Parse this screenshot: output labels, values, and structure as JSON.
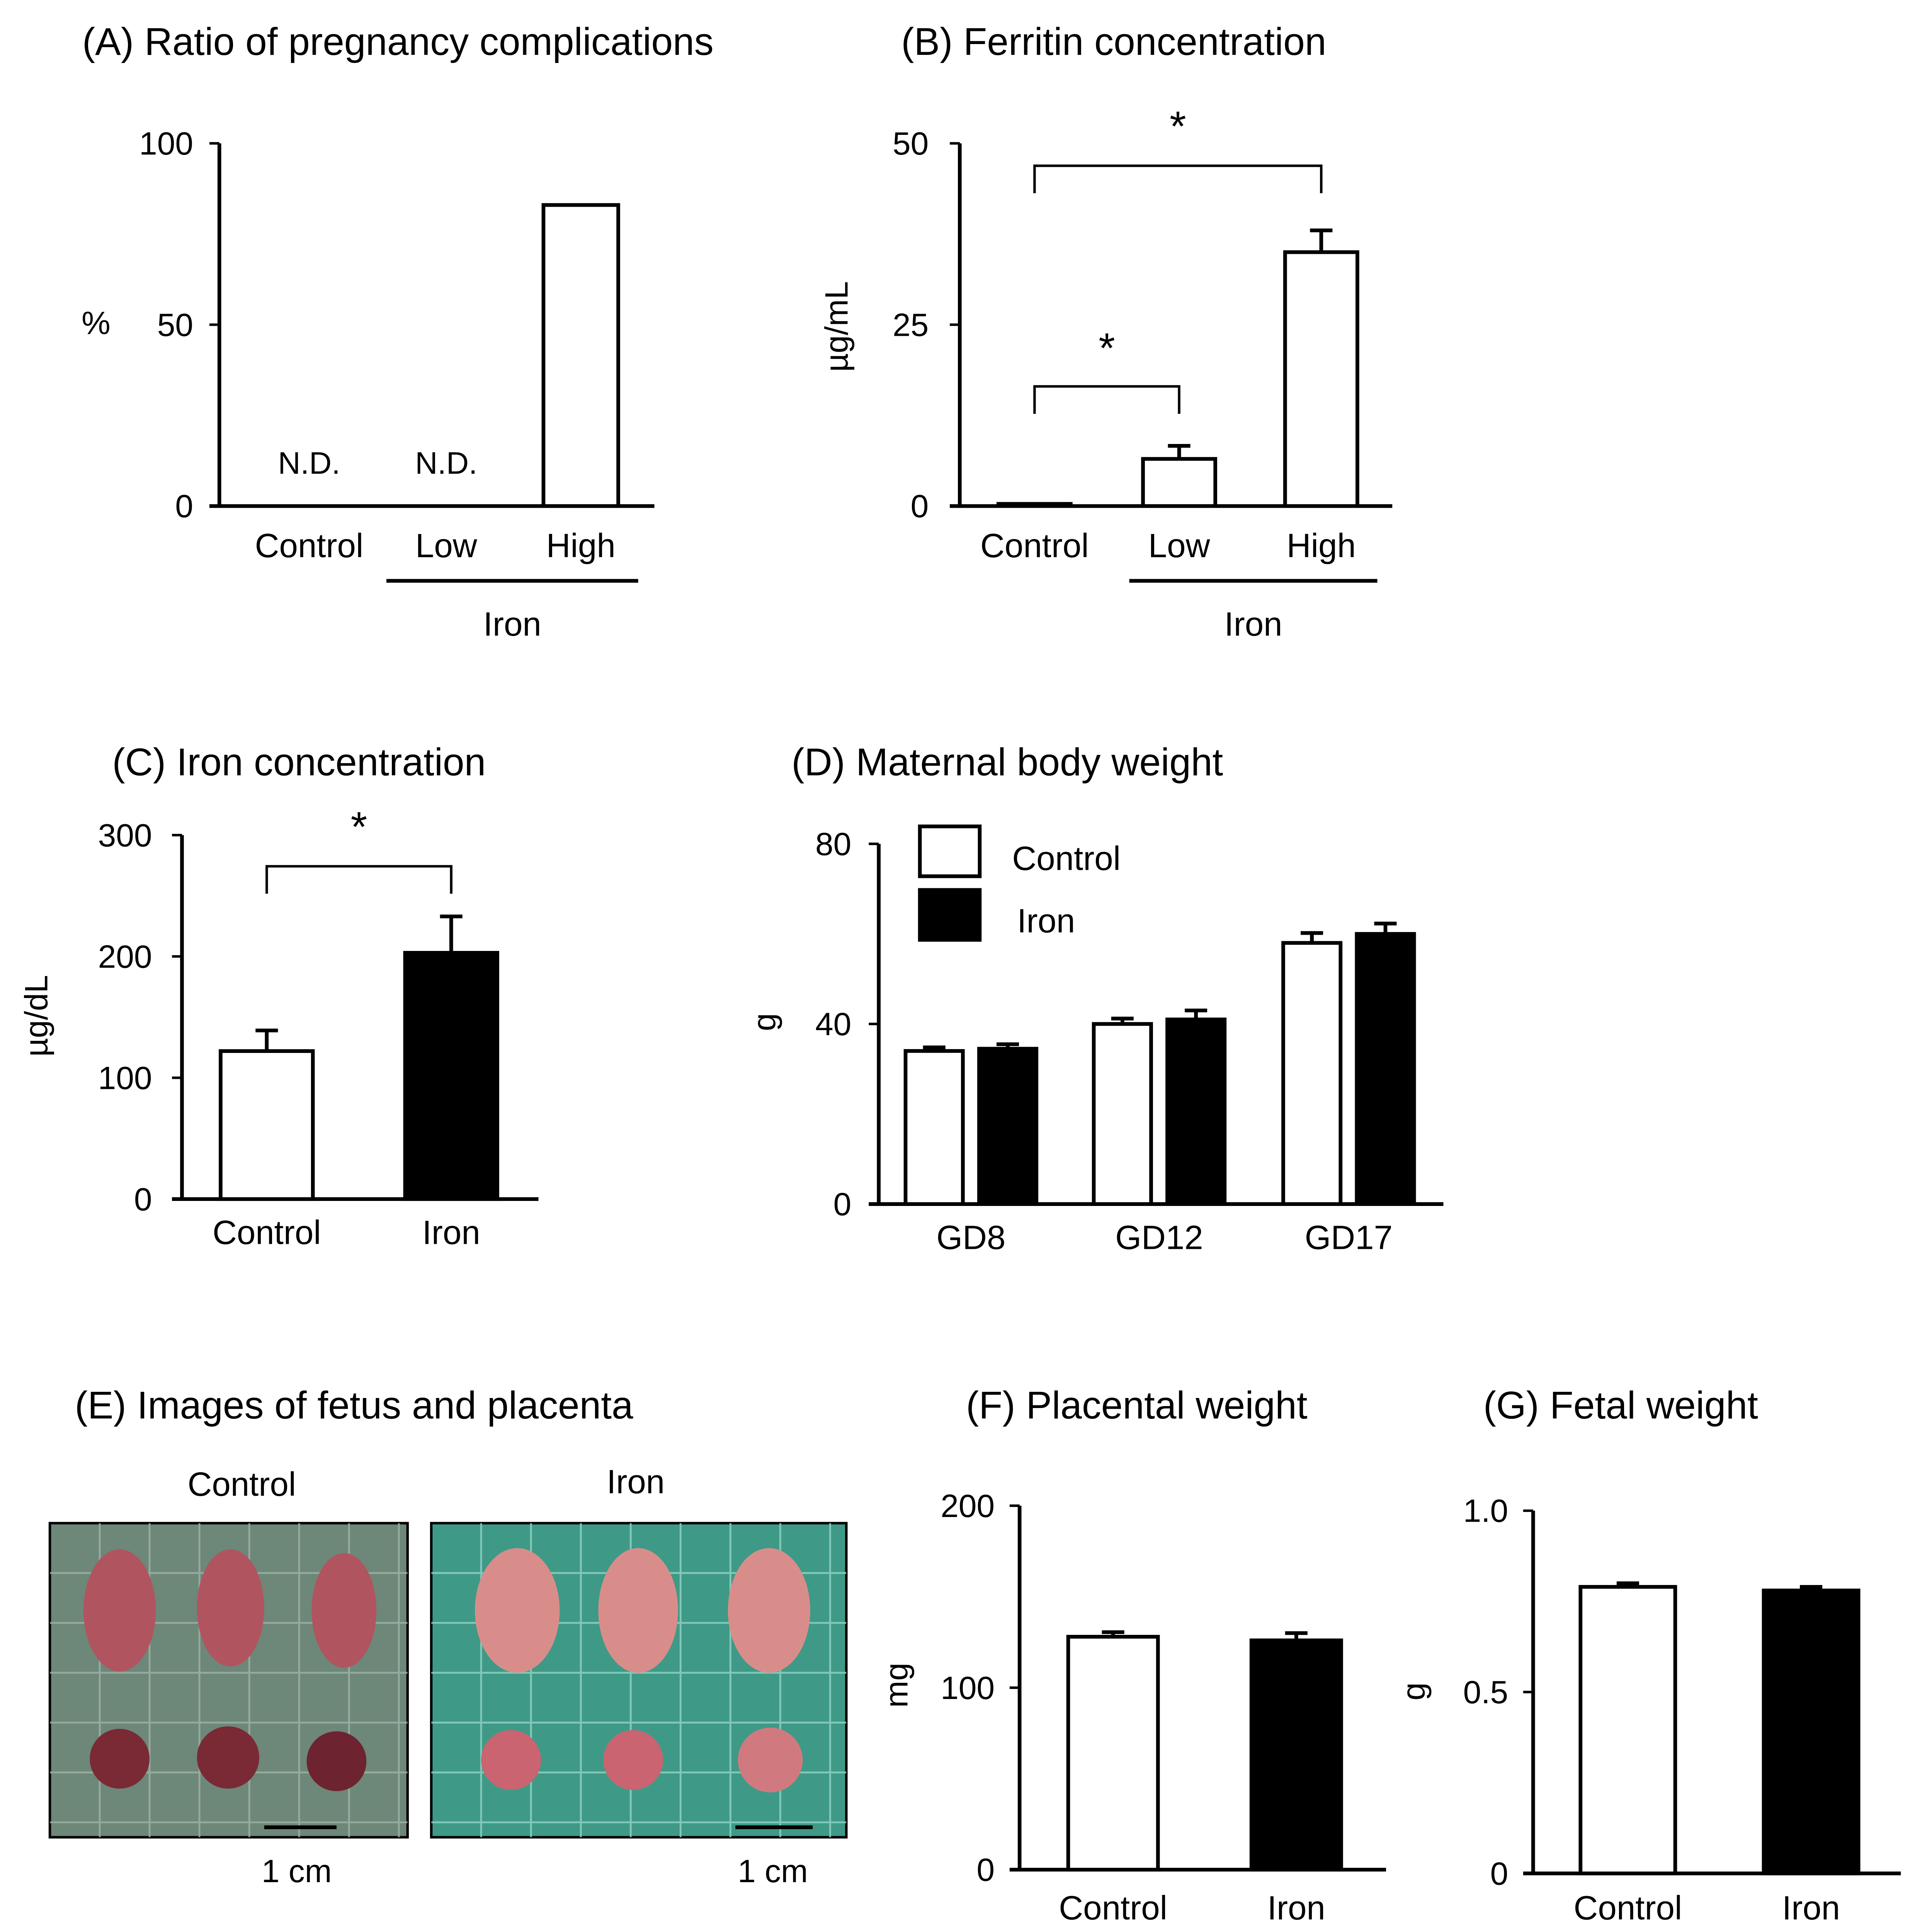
{
  "figure": {
    "colors": {
      "control": "#ffffff",
      "iron": "#000000",
      "stroke": "#000000"
    },
    "panels": {
      "A": {
        "title": "(A)   Ratio of pregnancy complications"
      },
      "B": {
        "title": "(B) Ferritin concentration"
      },
      "C": {
        "title": "(C) Iron concentration"
      },
      "D": {
        "title": "(D) Maternal body weight"
      },
      "E": {
        "title": "(E) Images of fetus and placenta",
        "left_label": "Control",
        "right_label": "Iron",
        "scale_left": "1 cm",
        "scale_right": "1 cm"
      },
      "F": {
        "title": "(F)  Placental weight"
      },
      "G": {
        "title": "(G)  Fetal weight"
      }
    }
  },
  "chart_data": [
    {
      "panel": "A",
      "type": "bar",
      "title": "Ratio of pregnancy complications",
      "ylabel": "%",
      "ylim": [
        0,
        100
      ],
      "yticks": [
        0,
        50,
        100
      ],
      "categories": [
        "Control",
        "Low",
        "High"
      ],
      "values": [
        null,
        null,
        83
      ],
      "bar_labels": [
        "N.D.",
        "N.D.",
        ""
      ],
      "group_label": "Iron",
      "group_members": [
        "Low",
        "High"
      ]
    },
    {
      "panel": "B",
      "type": "bar",
      "title": "Ferritin concentration",
      "ylabel": "µg/mL",
      "ylim": [
        0,
        50
      ],
      "yticks": [
        0,
        25,
        50
      ],
      "categories": [
        "Control",
        "Low",
        "High"
      ],
      "values": [
        0.3,
        6.5,
        35
      ],
      "errors": [
        0,
        1.8,
        3
      ],
      "group_label": "Iron",
      "group_members": [
        "Low",
        "High"
      ],
      "significance": [
        {
          "from": "Control",
          "to": "High",
          "label": "*"
        },
        {
          "from": "Control",
          "to": "Low",
          "label": "*"
        }
      ]
    },
    {
      "panel": "C",
      "type": "bar",
      "title": "Iron concentration",
      "ylabel": "µg/dL",
      "ylim": [
        0,
        300
      ],
      "yticks": [
        0,
        100,
        200,
        300
      ],
      "categories": [
        "Control",
        "Iron"
      ],
      "values": [
        122,
        203
      ],
      "errors": [
        17,
        30
      ],
      "fills": [
        "control",
        "iron"
      ],
      "significance": [
        {
          "from": "Control",
          "to": "Iron",
          "label": "*"
        }
      ]
    },
    {
      "panel": "D",
      "type": "bar",
      "title": "Maternal body weight",
      "ylabel": "g",
      "ylim": [
        0,
        80
      ],
      "yticks": [
        0,
        40,
        80
      ],
      "categories": [
        "GD8",
        "GD12",
        "GD17"
      ],
      "series": [
        {
          "name": "Control",
          "fill": "control",
          "values": [
            34,
            40,
            58
          ],
          "errors": [
            0.8,
            1.2,
            2.2
          ]
        },
        {
          "name": "Iron",
          "fill": "iron",
          "values": [
            34.5,
            41,
            60
          ],
          "errors": [
            1,
            2,
            2.3
          ]
        }
      ],
      "legend": [
        "Control",
        "Iron"
      ],
      "legend_position": "top-left"
    },
    {
      "panel": "F",
      "type": "bar",
      "title": "Placental weight",
      "ylabel": "mg",
      "ylim": [
        0,
        200
      ],
      "yticks": [
        0,
        100,
        200
      ],
      "categories": [
        "Control",
        "Iron"
      ],
      "values": [
        128,
        126
      ],
      "errors": [
        2.5,
        4
      ],
      "fills": [
        "control",
        "iron"
      ]
    },
    {
      "panel": "G",
      "type": "bar",
      "title": "Fetal weight",
      "ylabel": "g",
      "ylim": [
        0,
        1.0
      ],
      "yticks": [
        0,
        0.5,
        1.0
      ],
      "ytick_labels": [
        "0",
        "0.5",
        "1.0"
      ],
      "categories": [
        "Control",
        "Iron"
      ],
      "values": [
        0.79,
        0.78
      ],
      "errors": [
        0.01,
        0.01
      ],
      "fills": [
        "control",
        "iron"
      ]
    }
  ]
}
